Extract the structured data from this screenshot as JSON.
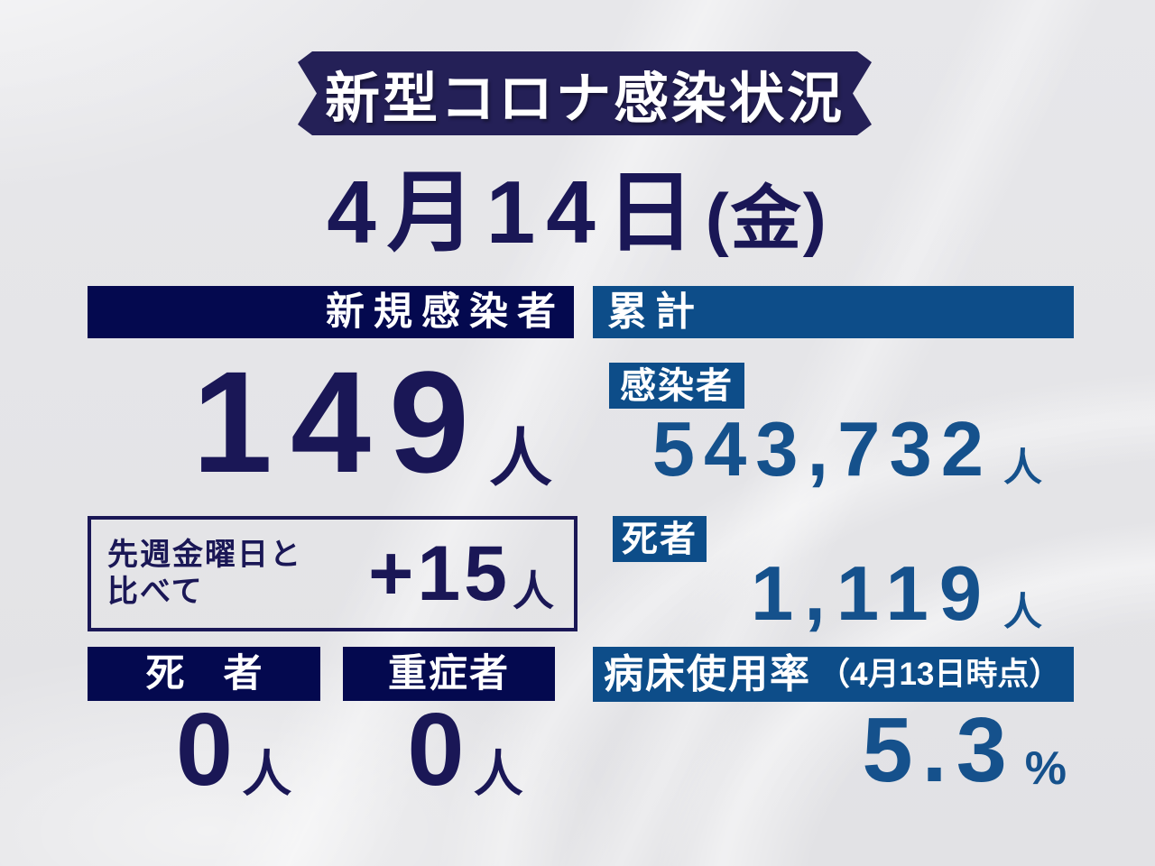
{
  "colors": {
    "background": "#e4e4e7",
    "banner_navy": "#242057",
    "dark_navy_bar": "#04094f",
    "dark_navy_text": "#1a1756",
    "blue_bar": "#0d4d89",
    "blue_text": "#15518c",
    "white": "#ffffff"
  },
  "title_banner": {
    "label": "新型コロナ感染状況"
  },
  "date_heading": {
    "date": "4月14日",
    "weekday": "(金)"
  },
  "new_cases": {
    "header": "新規感染者",
    "value": "149",
    "unit": "人",
    "comparison": {
      "label_line1": "先週金曜日と",
      "label_line2": "比べて",
      "value": "+15",
      "unit": "人"
    },
    "deaths": {
      "header": "死　者",
      "value": "0",
      "unit": "人"
    },
    "severe": {
      "header": "重症者",
      "value": "0",
      "unit": "人"
    }
  },
  "cumulative": {
    "header": "累計",
    "infected": {
      "label": "感染者",
      "value": "543,732",
      "unit": "人"
    },
    "deaths": {
      "label": "死者",
      "value": "1,119",
      "unit": "人"
    },
    "bed_usage": {
      "label": "病床使用率",
      "as_of": "（4月13日時点）",
      "value": "5.3",
      "unit": "%"
    }
  },
  "chart_data": {
    "type": "table",
    "title": "新型コロナ感染状況",
    "date": "4月14日(金)",
    "sections": [
      {
        "header": "新規感染者",
        "items": [
          {
            "label": "新規感染者",
            "value": 149,
            "unit": "人"
          },
          {
            "label": "先週金曜日と比べて",
            "value": 15,
            "unit": "人",
            "display": "+15"
          },
          {
            "label": "死者",
            "value": 0,
            "unit": "人"
          },
          {
            "label": "重症者",
            "value": 0,
            "unit": "人"
          }
        ]
      },
      {
        "header": "累計",
        "items": [
          {
            "label": "感染者",
            "value": 543732,
            "unit": "人",
            "display": "543,732"
          },
          {
            "label": "死者",
            "value": 1119,
            "unit": "人",
            "display": "1,119"
          },
          {
            "label": "病床使用率",
            "note": "4月13日時点",
            "value": 5.3,
            "unit": "%"
          }
        ]
      }
    ]
  }
}
